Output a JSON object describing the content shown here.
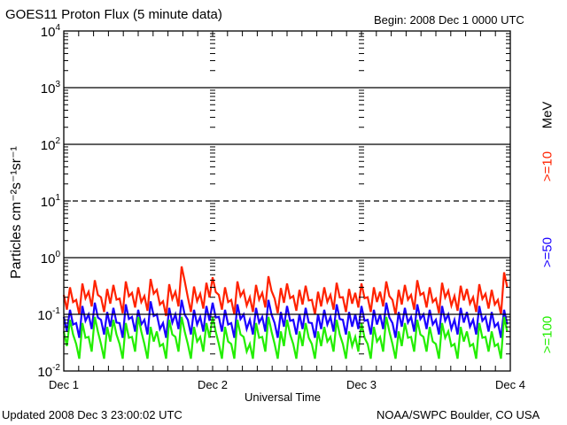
{
  "header": {
    "title": "GOES11 Proton Flux (5 minute data)",
    "begin": "Begin: 2008 Dec 1 0000 UTC"
  },
  "footer": {
    "updated": "Updated 2008 Dec  3 23:00:02 UTC",
    "credit": "NOAA/SWPC Boulder, CO USA"
  },
  "chart_data": {
    "type": "line",
    "title": "GOES11 Proton Flux (5 minute data)",
    "xlabel": "Universal Time",
    "ylabel": "Particles cm⁻²s⁻¹sr⁻¹",
    "yscale": "log",
    "ylim": [
      0.01,
      10000
    ],
    "xlim_hours": [
      0,
      72
    ],
    "time_step_hours": 1,
    "x_tick_labels": [
      "Dec 1",
      "Dec 2",
      "Dec 3",
      "Dec 4"
    ],
    "y_ticks": [
      {
        "base": "10",
        "exp": "-2"
      },
      {
        "base": "10",
        "exp": "-1"
      },
      {
        "base": "10",
        "exp": "0"
      },
      {
        "base": "10",
        "exp": "1"
      },
      {
        "base": "10",
        "exp": "2"
      },
      {
        "base": "10",
        "exp": "3"
      },
      {
        "base": "10",
        "exp": "4"
      }
    ],
    "reference_lines": [
      {
        "value": 1000,
        "style": "solid"
      },
      {
        "value": 100,
        "style": "solid"
      },
      {
        "value": 10,
        "style": "dashed"
      },
      {
        "value": 1,
        "style": "solid"
      },
      {
        "value": 0.1,
        "style": "solid"
      }
    ],
    "unit_label": "MeV",
    "series": [
      {
        "name": ">=10",
        "color": "#ff2200",
        "values": [
          0.22,
          0.3,
          0.18,
          0.35,
          0.25,
          0.4,
          0.2,
          0.28,
          0.33,
          0.19,
          0.38,
          0.24,
          0.3,
          0.21,
          0.42,
          0.27,
          0.17,
          0.34,
          0.25,
          0.7,
          0.2,
          0.31,
          0.23,
          0.36,
          0.45,
          0.22,
          0.3,
          0.18,
          0.38,
          0.26,
          0.2,
          0.33,
          0.24,
          0.47,
          0.19,
          0.29,
          0.35,
          0.21,
          0.27,
          0.32,
          0.18,
          0.25,
          0.3,
          0.22,
          0.36,
          0.2,
          0.28,
          0.24,
          0.35,
          0.2,
          0.3,
          0.25,
          0.38,
          0.18,
          0.27,
          0.33,
          0.22,
          0.4,
          0.24,
          0.3,
          0.19,
          0.36,
          0.26,
          0.21,
          0.32,
          0.28,
          0.2,
          0.34,
          0.23,
          0.27,
          0.18,
          0.55
        ]
      },
      {
        "name": ">=50",
        "color": "#1a00ff",
        "values": [
          0.09,
          0.12,
          0.07,
          0.14,
          0.1,
          0.16,
          0.08,
          0.11,
          0.13,
          0.07,
          0.15,
          0.09,
          0.12,
          0.08,
          0.17,
          0.1,
          0.07,
          0.13,
          0.1,
          0.18,
          0.08,
          0.12,
          0.09,
          0.14,
          0.16,
          0.09,
          0.12,
          0.07,
          0.15,
          0.1,
          0.08,
          0.13,
          0.09,
          0.18,
          0.07,
          0.11,
          0.14,
          0.08,
          0.1,
          0.13,
          0.07,
          0.1,
          0.12,
          0.09,
          0.15,
          0.08,
          0.11,
          0.1,
          0.14,
          0.08,
          0.12,
          0.1,
          0.16,
          0.07,
          0.11,
          0.13,
          0.09,
          0.15,
          0.1,
          0.12,
          0.08,
          0.14,
          0.1,
          0.08,
          0.13,
          0.11,
          0.08,
          0.14,
          0.09,
          0.11,
          0.07,
          0.12
        ]
      },
      {
        "name": ">=100",
        "color": "#22ee00",
        "values": [
          0.05,
          0.08,
          0.03,
          0.07,
          0.04,
          0.09,
          0.03,
          0.06,
          0.08,
          0.03,
          0.07,
          0.04,
          0.09,
          0.03,
          0.06,
          0.05,
          0.03,
          0.08,
          0.04,
          0.09,
          0.03,
          0.06,
          0.04,
          0.07,
          0.09,
          0.03,
          0.06,
          0.03,
          0.08,
          0.04,
          0.03,
          0.07,
          0.04,
          0.09,
          0.03,
          0.05,
          0.08,
          0.03,
          0.05,
          0.07,
          0.03,
          0.05,
          0.06,
          0.04,
          0.08,
          0.03,
          0.05,
          0.04,
          0.07,
          0.03,
          0.06,
          0.04,
          0.09,
          0.03,
          0.05,
          0.07,
          0.04,
          0.08,
          0.04,
          0.06,
          0.03,
          0.07,
          0.05,
          0.03,
          0.06,
          0.05,
          0.03,
          0.07,
          0.04,
          0.05,
          0.03,
          0.09
        ]
      }
    ]
  }
}
